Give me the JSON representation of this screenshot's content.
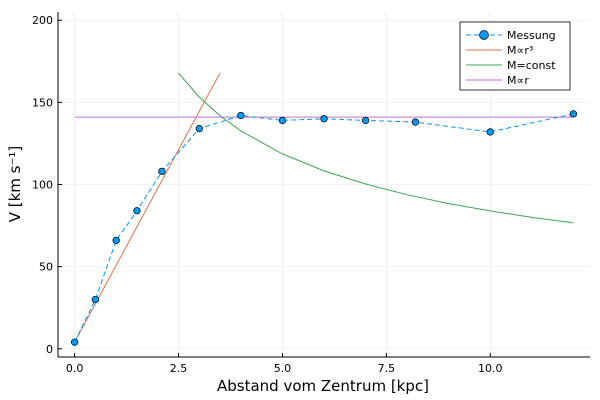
{
  "chart_data": {
    "type": "line",
    "xlabel": "Abstand vom Zentrum [kpc]",
    "ylabel": "V [km s⁻¹]",
    "xlim": [
      -0.4,
      12.4
    ],
    "ylim": [
      -5,
      205
    ],
    "x_ticks": [
      0.0,
      2.5,
      5.0,
      7.5,
      10.0
    ],
    "x_tick_labels": [
      "0.0",
      "2.5",
      "5.0",
      "7.5",
      "10.0"
    ],
    "y_ticks": [
      0,
      50,
      100,
      150,
      200
    ],
    "y_tick_labels": [
      "0",
      "50",
      "100",
      "150",
      "200"
    ],
    "grid": true,
    "legend_position": "top-right",
    "series": [
      {
        "name": "Messung",
        "kind": "line+markers",
        "dash": "dashed",
        "color": "#009AFA",
        "x": [
          0.0,
          0.5,
          1.0,
          1.5,
          2.1,
          3.0,
          4.0,
          5.0,
          6.0,
          7.0,
          8.2,
          10.0,
          12.0
        ],
        "y": [
          4,
          30,
          66,
          84,
          108,
          134,
          142,
          139,
          140,
          139,
          138,
          132,
          143
        ]
      },
      {
        "name": "M∝r³",
        "kind": "line",
        "color": "#E36F47",
        "x": [
          0.0,
          3.5
        ],
        "y": [
          4,
          168
        ]
      },
      {
        "name": "M=const",
        "kind": "line",
        "color": "#3EA44E",
        "formula": "y = 265.3 / sqrt(x)",
        "x": [
          2.5,
          3.0,
          3.5,
          4.0,
          5.0,
          6.0,
          7.0,
          8.0,
          9.0,
          10.0,
          11.0,
          12.0
        ],
        "y": [
          167.8,
          153.2,
          141.8,
          132.6,
          118.6,
          108.3,
          100.3,
          93.8,
          88.4,
          83.9,
          80.0,
          76.6
        ]
      },
      {
        "name": "M∝r",
        "kind": "line",
        "color": "#C271D2",
        "x": [
          0.0,
          12.0
        ],
        "y": [
          141,
          141
        ]
      }
    ]
  }
}
